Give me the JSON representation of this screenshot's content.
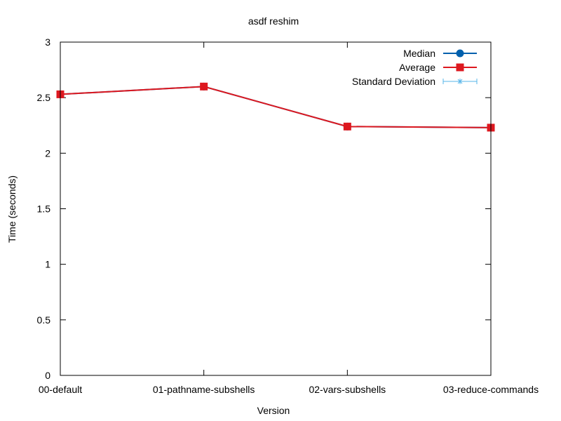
{
  "chart_data": {
    "type": "line",
    "title": "asdf reshim",
    "xlabel": "Version",
    "ylabel": "Time (seconds)",
    "categories": [
      "00-default",
      "01-pathname-subshells",
      "02-vars-subshells",
      "03-reduce-commands"
    ],
    "ylim": [
      0,
      3
    ],
    "yticks": [
      "0",
      "0.5",
      "1",
      "1.5",
      "2",
      "2.5",
      "3"
    ],
    "grid": false,
    "legend_position": "top-right",
    "series": [
      {
        "name": "Median",
        "values": [
          2.53,
          2.6,
          2.24,
          2.23
        ],
        "color": "#0060ad",
        "marker": "circle"
      },
      {
        "name": "Average",
        "values": [
          2.53,
          2.6,
          2.24,
          2.23
        ],
        "color": "#dd181f",
        "marker": "square"
      },
      {
        "name": "Standard Deviation",
        "values": [
          2.53,
          2.6,
          2.24,
          2.23
        ],
        "errors": [
          0.005,
          0.005,
          0.005,
          0.005
        ],
        "color": "#56b4e9",
        "marker": "asterisk"
      }
    ]
  }
}
